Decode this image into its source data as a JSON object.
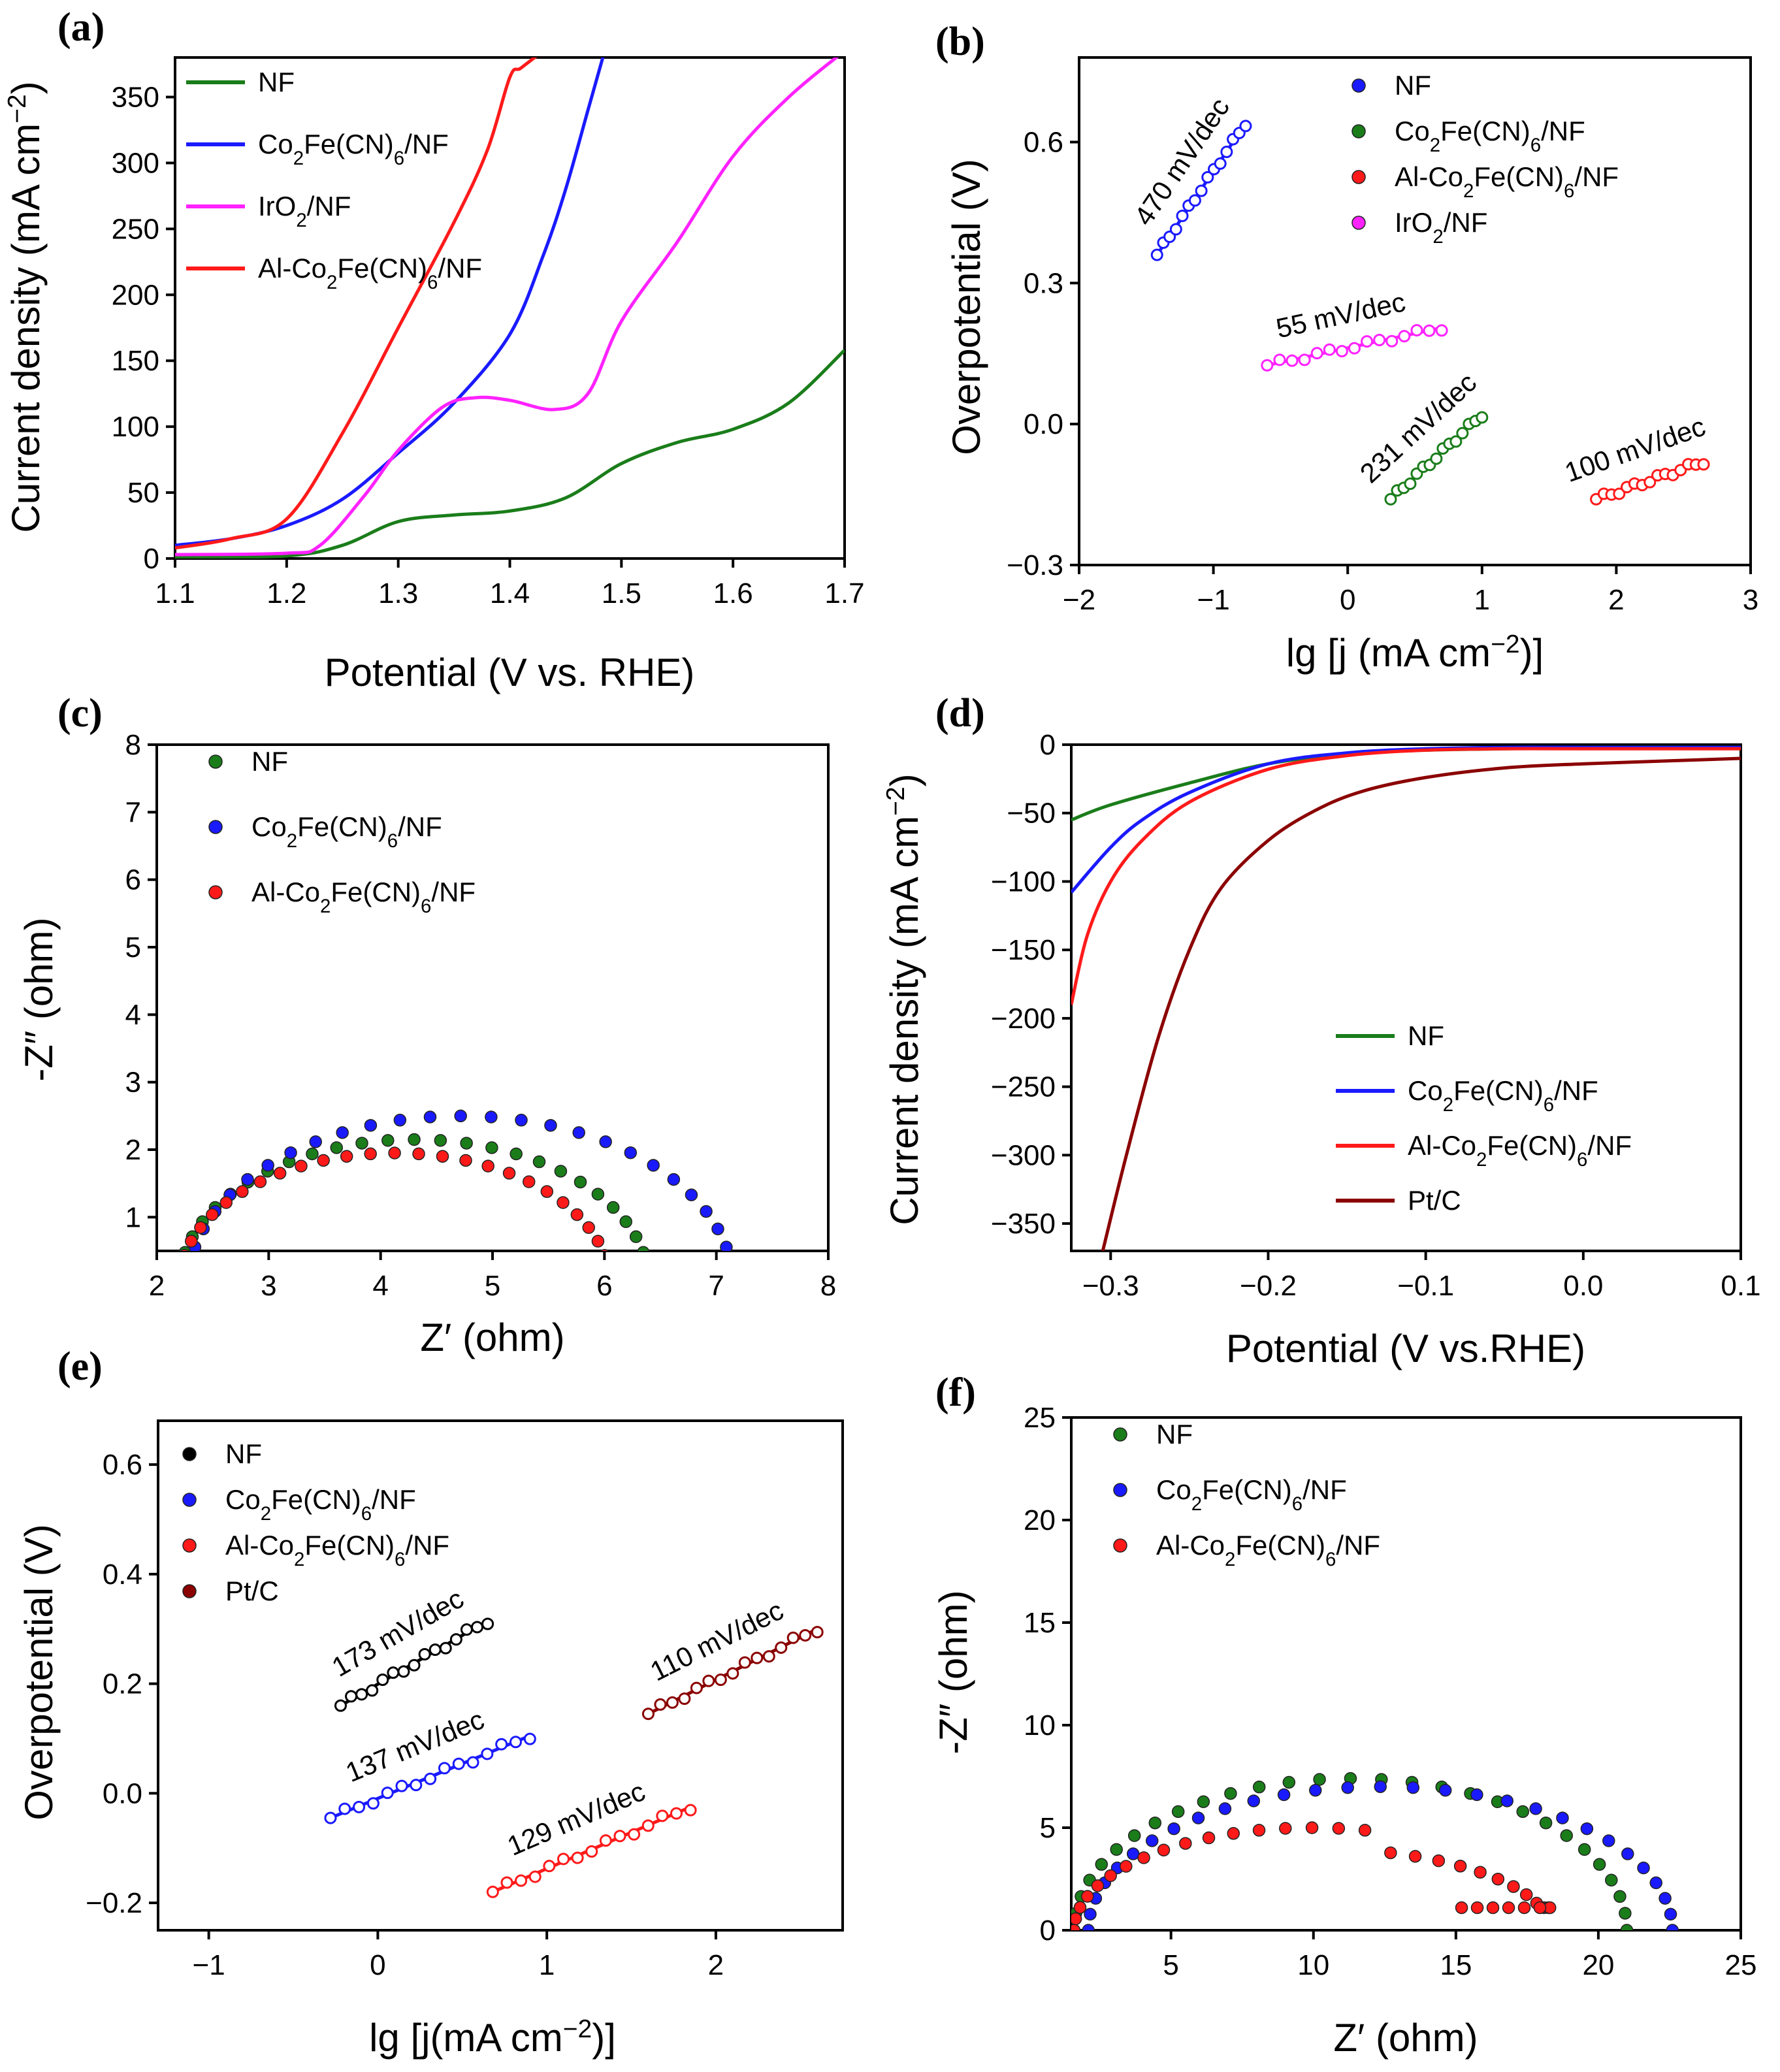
{
  "chart_data": [
    {
      "panel": "(a)",
      "type": "line",
      "xlabel": "Potential (V vs. RHE)",
      "ylabel": "Current density (mA cm⁻²)",
      "xlim": [
        1.1,
        1.7
      ],
      "ylim": [
        0,
        380
      ],
      "xticks": [
        1.1,
        1.2,
        1.3,
        1.4,
        1.5,
        1.6,
        1.7
      ],
      "yticks": [
        0,
        50,
        100,
        150,
        200,
        250,
        300,
        350
      ],
      "legend": "top-left",
      "series": [
        {
          "name": "NF",
          "color": "#1a7d1a",
          "x": [
            1.1,
            1.2,
            1.25,
            1.3,
            1.35,
            1.4,
            1.45,
            1.5,
            1.55,
            1.6,
            1.65,
            1.7
          ],
          "y": [
            1,
            2,
            10,
            28,
            33,
            36,
            46,
            72,
            88,
            98,
            118,
            158
          ]
        },
        {
          "name": "Co₂Fe(CN)₆/NF",
          "color": "#1a1aff",
          "x": [
            1.1,
            1.15,
            1.2,
            1.25,
            1.3,
            1.35,
            1.4,
            1.43,
            1.45,
            1.47,
            1.48,
            1.485
          ],
          "y": [
            10,
            15,
            25,
            45,
            80,
            118,
            170,
            230,
            280,
            340,
            370,
            385
          ]
        },
        {
          "name": "IrO₂/NF",
          "color": "#ff22ff",
          "x": [
            1.1,
            1.2,
            1.23,
            1.27,
            1.3,
            1.34,
            1.37,
            1.4,
            1.44,
            1.47,
            1.5,
            1.55,
            1.6,
            1.65,
            1.7
          ],
          "y": [
            3,
            4,
            10,
            48,
            82,
            115,
            122,
            120,
            113,
            125,
            180,
            240,
            305,
            350,
            385
          ]
        },
        {
          "name": "Al-Co₂Fe(CN)₆/NF",
          "color": "#ff1a1a",
          "x": [
            1.1,
            1.15,
            1.2,
            1.25,
            1.3,
            1.35,
            1.38,
            1.4,
            1.41,
            1.43
          ],
          "y": [
            8,
            15,
            30,
            95,
            175,
            255,
            310,
            365,
            372,
            385
          ]
        }
      ]
    },
    {
      "panel": "(b)",
      "type": "scatter",
      "xlabel": "lg [j (mA cm⁻²)]",
      "ylabel": "Overpotential (V)",
      "xlim": [
        -2,
        3
      ],
      "ylim": [
        -0.3,
        0.78
      ],
      "xticks": [
        -2,
        -1,
        0,
        1,
        2,
        3
      ],
      "yticks": [
        -0.3,
        0.0,
        0.3,
        0.6
      ],
      "legend": "top-right",
      "series": [
        {
          "name": "NF",
          "color": "#1a1aff",
          "x0": -1.42,
          "x1": -0.76,
          "y0": 0.36,
          "y1": 0.64,
          "slope_label": "470 mV/dec"
        },
        {
          "name": "Co₂Fe(CN)₆/NF",
          "color": "#1a7d1a",
          "x0": 0.32,
          "x1": 1.0,
          "y0": -0.16,
          "y1": 0.02,
          "slope_label": "231 mV/dec"
        },
        {
          "name": "Al-Co₂Fe(CN)₆/NF",
          "color": "#ff1a1a",
          "x0": 1.85,
          "x1": 2.65,
          "y0": -0.16,
          "y1": -0.08,
          "slope_label": "100 mV/dec"
        },
        {
          "name": "IrO₂/NF",
          "color": "#ff22ff",
          "x0": -0.6,
          "x1": 0.7,
          "y0": 0.125,
          "y1": 0.205,
          "slope_label": "55 mV/dec"
        }
      ]
    },
    {
      "panel": "(c)",
      "type": "scatter",
      "xlabel": "Z′ (ohm)",
      "ylabel": "-Z″ (ohm)",
      "xlim": [
        2,
        8
      ],
      "ylim": [
        0.5,
        8
      ],
      "xticks": [
        2,
        3,
        4,
        5,
        6,
        7,
        8
      ],
      "yticks": [
        1,
        2,
        3,
        4,
        5,
        6,
        7,
        8
      ],
      "legend": "top-left",
      "series": [
        {
          "name": "NF",
          "color": "#1a7d1a",
          "r_start": 2.2,
          "r_end": 6.4,
          "peak": 2.15
        },
        {
          "name": "Co₂Fe(CN)₆/NF",
          "color": "#1a1aff",
          "r_start": 2.28,
          "r_end": 7.15,
          "peak": 2.5
        },
        {
          "name": "Al-Co₂Fe(CN)₆/NF",
          "color": "#ff1a1a",
          "r_start": 2.2,
          "r_end": 6.05,
          "peak": 1.95
        }
      ]
    },
    {
      "panel": "(d)",
      "type": "line",
      "xlabel": "Potential (V vs.RHE)",
      "ylabel": "Current density (mA cm⁻²)",
      "xlim": [
        -0.325,
        0.1
      ],
      "ylim": [
        -370,
        0
      ],
      "xticks": [
        -0.3,
        -0.2,
        -0.1,
        0.0,
        0.1
      ],
      "yticks": [
        0,
        -50,
        -100,
        -150,
        -200,
        -250,
        -300,
        -350
      ],
      "legend": "bottom-right",
      "series": [
        {
          "name": "NF",
          "color": "#1a7d1a",
          "x": [
            -0.325,
            -0.3,
            -0.25,
            -0.2,
            -0.15,
            -0.1,
            -0.05,
            0.0,
            0.1
          ],
          "y": [
            -55,
            -44,
            -28,
            -14,
            -7,
            -4,
            -3,
            -2,
            -2
          ]
        },
        {
          "name": "Co₂Fe(CN)₆/NF",
          "color": "#1a1aff",
          "x": [
            -0.325,
            -0.3,
            -0.28,
            -0.25,
            -0.2,
            -0.15,
            -0.1,
            -0.05,
            0.0,
            0.1
          ],
          "y": [
            -108,
            -75,
            -55,
            -35,
            -14,
            -6,
            -3,
            -2,
            -2,
            -2
          ]
        },
        {
          "name": "Al-Co₂Fe(CN)₆/NF",
          "color": "#ff1a1a",
          "x": [
            -0.325,
            -0.315,
            -0.3,
            -0.28,
            -0.25,
            -0.2,
            -0.15,
            -0.1,
            -0.05,
            0.0,
            0.1
          ],
          "y": [
            -190,
            -140,
            -100,
            -70,
            -42,
            -18,
            -8,
            -4,
            -3,
            -3,
            -3
          ]
        },
        {
          "name": "Pt/C",
          "color": "#8b0000",
          "x": [
            -0.305,
            -0.29,
            -0.27,
            -0.25,
            -0.23,
            -0.2,
            -0.17,
            -0.14,
            -0.1,
            -0.05,
            0.0,
            0.05,
            0.1
          ],
          "y": [
            -370,
            -300,
            -215,
            -150,
            -105,
            -70,
            -48,
            -34,
            -24,
            -17,
            -14,
            -12,
            -10
          ]
        }
      ]
    },
    {
      "panel": "(e)",
      "type": "scatter",
      "xlabel": "lg [j(mA cm⁻²)]",
      "ylabel": "Overpotential (V)",
      "xlim": [
        -1.3,
        2.75
      ],
      "ylim": [
        -0.25,
        0.68
      ],
      "xticks": [
        -1,
        0,
        1,
        2
      ],
      "yticks": [
        -0.2,
        0.0,
        0.2,
        0.4,
        0.6
      ],
      "legend": "top-left",
      "series": [
        {
          "name": "NF",
          "color": "#000000",
          "x0": -0.22,
          "x1": 0.65,
          "y0": 0.16,
          "y1": 0.315,
          "slope_label": "173 mV/dec"
        },
        {
          "name": "Co₂Fe(CN)₆/NF",
          "color": "#1a1aff",
          "x0": -0.28,
          "x1": 0.9,
          "y0": -0.045,
          "y1": 0.105,
          "slope_label": "137 mV/dec"
        },
        {
          "name": "Al-Co₂Fe(CN)₆/NF",
          "color": "#ff1a1a",
          "x0": 0.68,
          "x1": 1.85,
          "y0": -0.18,
          "y1": -0.025,
          "slope_label": "129 mV/dec"
        },
        {
          "name": "Pt/C",
          "color": "#8b0000",
          "x0": 1.6,
          "x1": 2.6,
          "y0": 0.145,
          "y1": 0.3,
          "slope_label": "110 mV/dec"
        }
      ]
    },
    {
      "panel": "(f)",
      "type": "scatter",
      "xlabel": "Z′ (ohm)",
      "ylabel": "-Z″ (ohm)",
      "xlim": [
        1.5,
        25
      ],
      "ylim": [
        0,
        25
      ],
      "xticks": [
        5,
        10,
        15,
        20,
        25
      ],
      "yticks": [
        0,
        5,
        10,
        15,
        20,
        25
      ],
      "legend": "top-left",
      "series": [
        {
          "name": "NF",
          "color": "#1a7d1a",
          "r_start": 1.6,
          "r_end": 21.0,
          "peak": 7.4
        },
        {
          "name": "Co₂Fe(CN)₆/NF",
          "color": "#1a1aff",
          "r_start": 2.1,
          "r_end": 22.6,
          "peak": 7.0
        },
        {
          "name": "Al-Co₂Fe(CN)₆/NF",
          "color": "#ff1a1a",
          "r_start": 1.6,
          "r_end": 18.3,
          "peak": 5.0,
          "tail": 1.1
        }
      ]
    }
  ]
}
